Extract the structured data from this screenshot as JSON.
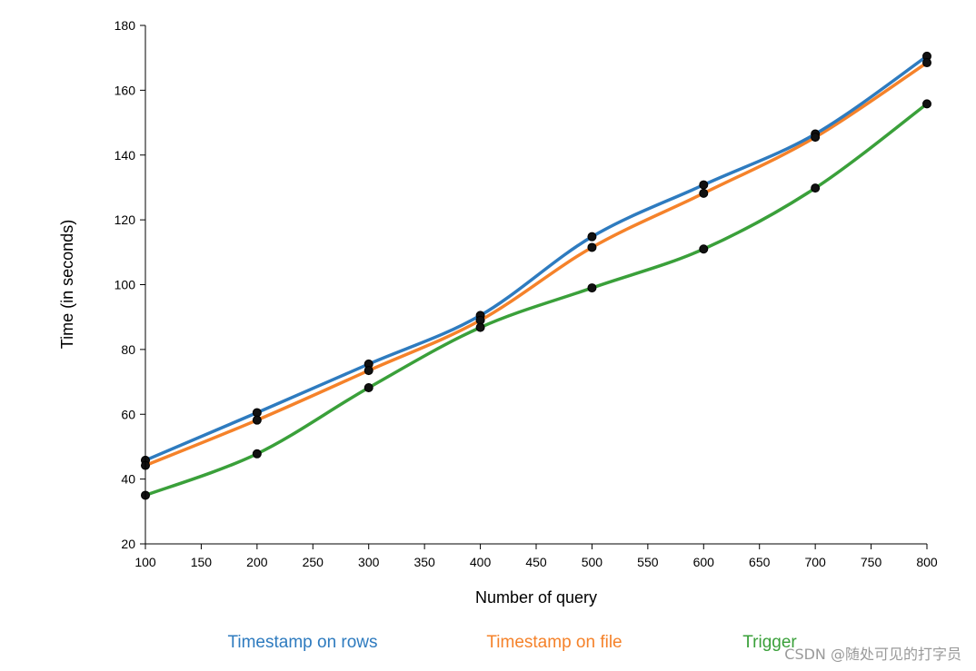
{
  "chart_data": {
    "type": "line",
    "title": "",
    "xlabel": "Number of query",
    "ylabel": "Time (in seconds)",
    "xlim": [
      100,
      800
    ],
    "ylim": [
      20,
      180
    ],
    "x_ticks": [
      100,
      150,
      200,
      250,
      300,
      350,
      400,
      450,
      500,
      550,
      600,
      650,
      700,
      750,
      800
    ],
    "y_ticks": [
      20,
      40,
      60,
      80,
      100,
      120,
      140,
      160,
      180
    ],
    "x": [
      100,
      200,
      300,
      400,
      500,
      600,
      700,
      800
    ],
    "series": [
      {
        "name": "Timestamp on rows",
        "color": "#2e7bbf",
        "values": [
          45.8,
          60.5,
          75.5,
          90.5,
          114.8,
          130.8,
          146.5,
          170.5
        ]
      },
      {
        "name": "Timestamp on file",
        "color": "#f5822a",
        "values": [
          44.2,
          58.2,
          73.5,
          89.0,
          111.5,
          128.2,
          145.5,
          168.5
        ]
      },
      {
        "name": "Trigger",
        "color": "#3aa03a",
        "values": [
          35.0,
          47.8,
          68.2,
          86.8,
          99.0,
          111.0,
          129.8,
          155.8
        ]
      }
    ],
    "grid": false,
    "legend_position": "bottom"
  },
  "watermark": "CSDN @随处可见的打字员"
}
